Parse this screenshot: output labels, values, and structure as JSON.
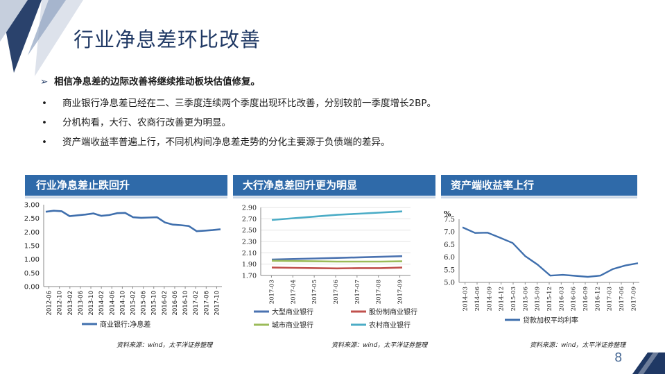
{
  "slide": {
    "title": "行业净息差环比改善",
    "lead_marker": "➢",
    "lead": "相信净息差的边际改善将继续推动板块估值修复。",
    "bullet_marker": "•",
    "bullets": [
      "商业银行净息差已经在二、三季度连续两个季度出现环比改善，分别较前一季度增长2BP。",
      "分机构看，大行、农商行改善更为明显。",
      "资产端收益率普遍上行，不同机构间净息差走势的分化主要源于负债端的差异。"
    ],
    "page_number": "8",
    "colors": {
      "title": "#1f3864",
      "panel": "#2f6aa9",
      "deco": "#1f3864"
    }
  },
  "panels": [
    {
      "title": "行业净息差止跌回升",
      "source": "资料来源：wind，太平洋证券整理"
    },
    {
      "title": "大行净息差回升更为明显",
      "source": "资料来源：wind，太平洋证券整理"
    },
    {
      "title": "资产端收益率上行",
      "source": "资料来源：wind，太平洋证券整理"
    }
  ],
  "chart_data": [
    {
      "type": "line",
      "y_ticks": [
        "3.00",
        "2.50",
        "2.00",
        "1.50",
        "1.00",
        "0.50",
        "0.00"
      ],
      "ylim": [
        0,
        3
      ],
      "x_labels": [
        "2012-06",
        "2012-10",
        "2013-02",
        "2013-06",
        "2013-10",
        "2014-02",
        "2014-06",
        "2014-10",
        "2015-02",
        "2015-06",
        "2015-10",
        "2016-02",
        "2016-06",
        "2016-10",
        "2017-02",
        "2017-06",
        "2017-10"
      ],
      "series": [
        {
          "name": "商业银行:净息差",
          "color": "#3f6fad",
          "values": [
            2.74,
            2.78,
            2.76,
            2.58,
            2.61,
            2.64,
            2.68,
            2.59,
            2.62,
            2.69,
            2.7,
            2.54,
            2.52,
            2.53,
            2.54,
            2.35,
            2.27,
            2.25,
            2.22,
            2.03,
            2.05,
            2.07,
            2.1
          ]
        }
      ]
    },
    {
      "type": "line",
      "y_ticks": [
        "2.90",
        "2.70",
        "2.50",
        "2.30",
        "2.10",
        "1.90",
        "1.70"
      ],
      "ylim": [
        1.7,
        2.9
      ],
      "x_labels": [
        "2017-03",
        "2017-04",
        "2017-05",
        "2017-06",
        "2017-07",
        "2017-08",
        "2017-09"
      ],
      "series": [
        {
          "name": "大型商业银行",
          "color": "#4a72b0",
          "values": [
            1.98,
            1.99,
            2.0,
            2.01,
            2.02,
            2.03,
            2.04
          ]
        },
        {
          "name": "股份制商业银行",
          "color": "#c0504d",
          "values": [
            1.84,
            1.835,
            1.83,
            1.825,
            1.83,
            1.83,
            1.84
          ]
        },
        {
          "name": "城市商业银行",
          "color": "#9bbb59",
          "values": [
            1.96,
            1.955,
            1.95,
            1.945,
            1.945,
            1.945,
            1.95
          ]
        },
        {
          "name": "农村商业银行",
          "color": "#4bacc6",
          "values": [
            2.68,
            2.71,
            2.74,
            2.77,
            2.79,
            2.81,
            2.83
          ]
        }
      ]
    },
    {
      "type": "line",
      "unit": "%",
      "y_ticks": [
        "7.5",
        "7.0",
        "6.5",
        "6.0",
        "5.5",
        "5.0"
      ],
      "ylim": [
        5.0,
        7.5
      ],
      "x_labels": [
        "2014-03",
        "2014-06",
        "2014-09",
        "2014-12",
        "2015-03",
        "2015-06",
        "2015-09",
        "2015-12",
        "2016-03",
        "2016-06",
        "2016-09",
        "2016-12",
        "2017-03",
        "2017-06",
        "2017-09"
      ],
      "series": [
        {
          "name": "贷款加权平均利率",
          "color": "#3f6fad",
          "values": [
            7.18,
            6.96,
            6.97,
            6.77,
            6.56,
            6.04,
            5.7,
            5.27,
            5.3,
            5.26,
            5.22,
            5.27,
            5.53,
            5.67,
            5.76
          ]
        }
      ]
    }
  ]
}
